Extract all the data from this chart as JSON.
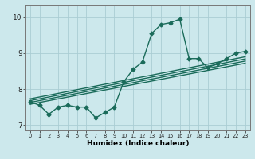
{
  "title": "",
  "xlabel": "Humidex (Indice chaleur)",
  "ylabel": "",
  "bg_color": "#cce8ec",
  "line_color": "#1a6b5a",
  "grid_color": "#aacdd4",
  "x_data": [
    0,
    1,
    2,
    3,
    4,
    5,
    6,
    7,
    8,
    9,
    10,
    11,
    12,
    13,
    14,
    15,
    16,
    17,
    18,
    19,
    20,
    21,
    22,
    23
  ],
  "y_main": [
    7.65,
    7.55,
    7.3,
    7.5,
    7.55,
    7.5,
    7.5,
    7.2,
    7.35,
    7.5,
    8.2,
    8.55,
    8.75,
    9.55,
    9.8,
    9.85,
    9.95,
    8.85,
    8.85,
    8.6,
    8.7,
    8.85,
    9.0,
    9.05
  ],
  "regression_lines": [
    {
      "x0": 0,
      "y0": 7.58,
      "x1": 23,
      "y1": 8.72
    },
    {
      "x0": 0,
      "y0": 7.63,
      "x1": 23,
      "y1": 8.78
    },
    {
      "x0": 0,
      "y0": 7.68,
      "x1": 23,
      "y1": 8.84
    },
    {
      "x0": 0,
      "y0": 7.73,
      "x1": 23,
      "y1": 8.9
    }
  ],
  "xlim": [
    -0.5,
    23.5
  ],
  "ylim": [
    6.85,
    10.35
  ],
  "yticks": [
    7,
    8,
    9,
    10
  ],
  "ytick_labels": [
    "7",
    "8",
    "9",
    "10"
  ],
  "xticks": [
    0,
    1,
    2,
    3,
    4,
    5,
    6,
    7,
    8,
    9,
    10,
    11,
    12,
    13,
    14,
    15,
    16,
    17,
    18,
    19,
    20,
    21,
    22,
    23
  ],
  "marker_size": 2.5,
  "line_width": 1.0
}
